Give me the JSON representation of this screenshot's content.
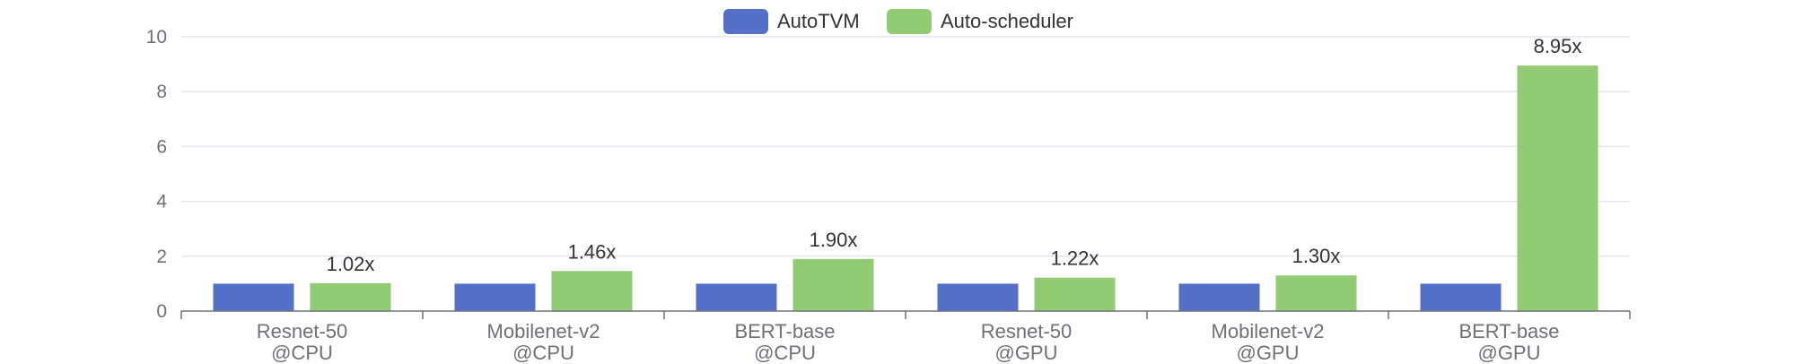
{
  "chart_data": {
    "type": "bar",
    "categories": [
      [
        "Resnet-50",
        "@CPU"
      ],
      [
        "Mobilenet-v2",
        "@CPU"
      ],
      [
        "BERT-base",
        "@CPU"
      ],
      [
        "Resnet-50",
        "@GPU"
      ],
      [
        "Mobilenet-v2",
        "@GPU"
      ],
      [
        "BERT-base",
        "@GPU"
      ]
    ],
    "series": [
      {
        "name": "AutoTVM",
        "color": "#5470c6",
        "values": [
          1,
          1,
          1,
          1,
          1,
          1
        ],
        "labels": [
          "",
          "",
          "",
          "",
          "",
          ""
        ]
      },
      {
        "name": "Auto-scheduler",
        "color": "#91cc75",
        "values": [
          1.02,
          1.46,
          1.9,
          1.22,
          1.3,
          8.95
        ],
        "labels": [
          "1.02x",
          "1.46x",
          "1.90x",
          "1.22x",
          "1.30x",
          "8.95x"
        ]
      }
    ],
    "y_ticks": [
      "0",
      "2",
      "4",
      "6",
      "8",
      "10"
    ],
    "ylim": [
      0,
      10
    ],
    "grid": true,
    "legend_position": "top-center"
  }
}
